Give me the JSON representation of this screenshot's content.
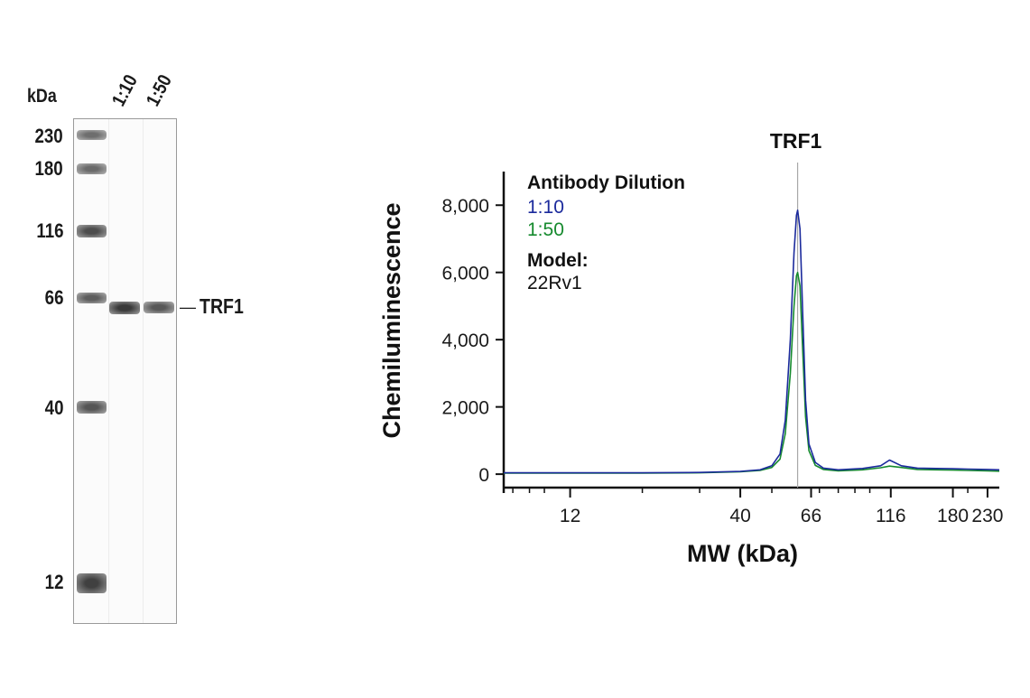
{
  "blot": {
    "unit_label": "kDa",
    "lane_labels": [
      "1:10",
      "1:50"
    ],
    "markers": [
      "230",
      "180",
      "116",
      "66",
      "40",
      "12"
    ],
    "band_label": "TRF1",
    "band_dash": "—"
  },
  "chart_data": {
    "type": "line",
    "title": "TRF1",
    "xlabel": "MW (kDa)",
    "ylabel": "Chemiluminescence",
    "x_scale": "log",
    "x_ticks": [
      12,
      40,
      66,
      116,
      180,
      230
    ],
    "x_tick_labels": [
      "12",
      "40",
      "66",
      "116",
      "180",
      "230"
    ],
    "xlim": [
      7.5,
      250
    ],
    "y_ticks": [
      0,
      2000,
      4000,
      6000,
      8000
    ],
    "y_tick_labels": [
      "0",
      "2,000",
      "4,000",
      "6,000",
      "8,000"
    ],
    "ylim": [
      -400,
      9000
    ],
    "peak_marker_x": 60,
    "legend": {
      "heading": "Antibody Dilution",
      "placement": "top-left",
      "model_label": "Model:",
      "model_value": "22Rv1"
    },
    "series": [
      {
        "name": "1:10",
        "color": "#1b2a9c",
        "x": [
          7.5,
          12,
          20,
          30,
          40,
          46,
          50,
          53,
          55,
          57,
          58.5,
          59.5,
          60,
          61,
          62,
          63.5,
          65,
          68,
          72,
          80,
          95,
          108,
          115,
          125,
          140,
          160,
          180,
          200,
          230,
          250
        ],
        "y": [
          40,
          40,
          40,
          50,
          80,
          130,
          250,
          600,
          1600,
          4000,
          6600,
          7700,
          7850,
          7300,
          5200,
          2200,
          900,
          350,
          180,
          130,
          170,
          250,
          420,
          250,
          180,
          170,
          160,
          150,
          140,
          130
        ]
      },
      {
        "name": "1:50",
        "color": "#168a2e",
        "x": [
          7.5,
          12,
          20,
          30,
          40,
          46,
          50,
          53,
          55,
          57,
          58.5,
          59.5,
          60,
          61,
          62,
          63.5,
          65,
          68,
          72,
          80,
          95,
          108,
          115,
          125,
          140,
          160,
          180,
          200,
          230,
          250
        ],
        "y": [
          30,
          30,
          30,
          40,
          70,
          110,
          200,
          450,
          1200,
          3000,
          5000,
          5900,
          6000,
          5600,
          4000,
          1700,
          700,
          260,
          140,
          100,
          130,
          190,
          240,
          200,
          140,
          130,
          120,
          110,
          100,
          90
        ]
      }
    ]
  }
}
